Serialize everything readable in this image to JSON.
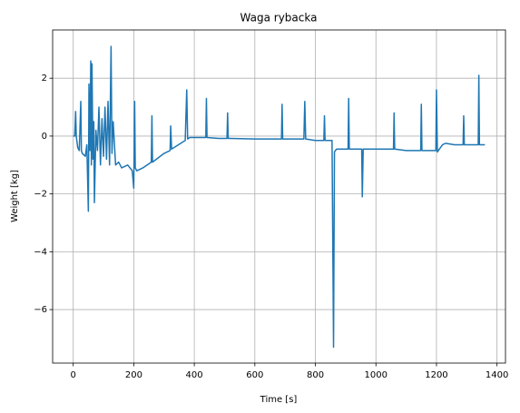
{
  "chart_data": {
    "type": "line",
    "title": "Waga rybacka",
    "x_label": "Time [s]",
    "y_label": "Weight [kg]",
    "color": "#1f77b4",
    "grid": true,
    "xlim": [
      -68,
      1428
    ],
    "ylim": [
      -7.85,
      3.67
    ],
    "xticks": [
      0,
      200,
      400,
      600,
      800,
      1000,
      1200,
      1400
    ],
    "yticks": [
      {
        "value": -6,
        "label": "−6"
      },
      {
        "value": -4,
        "label": "−4"
      },
      {
        "value": -2,
        "label": "−2"
      },
      0,
      2
    ],
    "x": [
      0,
      5,
      8,
      10,
      15,
      20,
      25,
      27,
      30,
      40,
      45,
      50,
      52,
      55,
      58,
      60,
      62,
      65,
      68,
      70,
      75,
      80,
      85,
      90,
      95,
      100,
      105,
      110,
      115,
      120,
      125,
      128,
      132,
      140,
      150,
      160,
      180,
      195,
      200,
      203,
      205,
      210,
      230,
      258,
      260,
      262,
      300,
      320,
      322,
      325,
      370,
      375,
      378,
      385,
      400,
      438,
      440,
      442,
      480,
      508,
      510,
      512,
      600,
      688,
      690,
      692,
      762,
      765,
      768,
      800,
      828,
      830,
      832,
      855,
      860,
      863,
      866,
      870,
      908,
      910,
      912,
      953,
      955,
      958,
      1000,
      1058,
      1060,
      1062,
      1100,
      1148,
      1150,
      1152,
      1198,
      1200,
      1203,
      1220,
      1230,
      1260,
      1288,
      1290,
      1292,
      1338,
      1340,
      1342,
      1360
    ],
    "values": [
      0,
      0,
      0.85,
      0,
      -0.4,
      -0.5,
      1.2,
      -0.5,
      -0.6,
      -0.7,
      -0.3,
      -2.6,
      1.8,
      -0.5,
      2.6,
      -1,
      2.5,
      -0.8,
      0.5,
      -2.3,
      0.2,
      -0.5,
      1,
      -1,
      0.6,
      -0.7,
      1,
      -0.8,
      1.2,
      -1,
      3.1,
      -0.6,
      0.5,
      -1,
      -0.9,
      -1.1,
      -1.0,
      -1.2,
      -1.8,
      1.2,
      -1.1,
      -1.2,
      -1.1,
      -0.9,
      0.7,
      -0.9,
      -0.6,
      -0.5,
      0.35,
      -0.45,
      -0.15,
      1.6,
      -0.1,
      -0.05,
      -0.05,
      -0.05,
      1.3,
      -0.05,
      -0.08,
      -0.08,
      0.8,
      -0.08,
      -0.1,
      -0.1,
      1.1,
      -0.1,
      -0.1,
      1.2,
      -0.1,
      -0.15,
      -0.15,
      0.7,
      -0.15,
      -0.15,
      -7.3,
      -0.55,
      -0.5,
      -0.45,
      -0.45,
      1.3,
      -0.45,
      -0.45,
      -2.1,
      -0.45,
      -0.45,
      -0.45,
      0.8,
      -0.45,
      -0.5,
      -0.5,
      1.1,
      -0.5,
      -0.5,
      1.6,
      -0.55,
      -0.3,
      -0.25,
      -0.3,
      -0.3,
      0.7,
      -0.3,
      -0.3,
      2.1,
      -0.3,
      -0.3
    ]
  }
}
